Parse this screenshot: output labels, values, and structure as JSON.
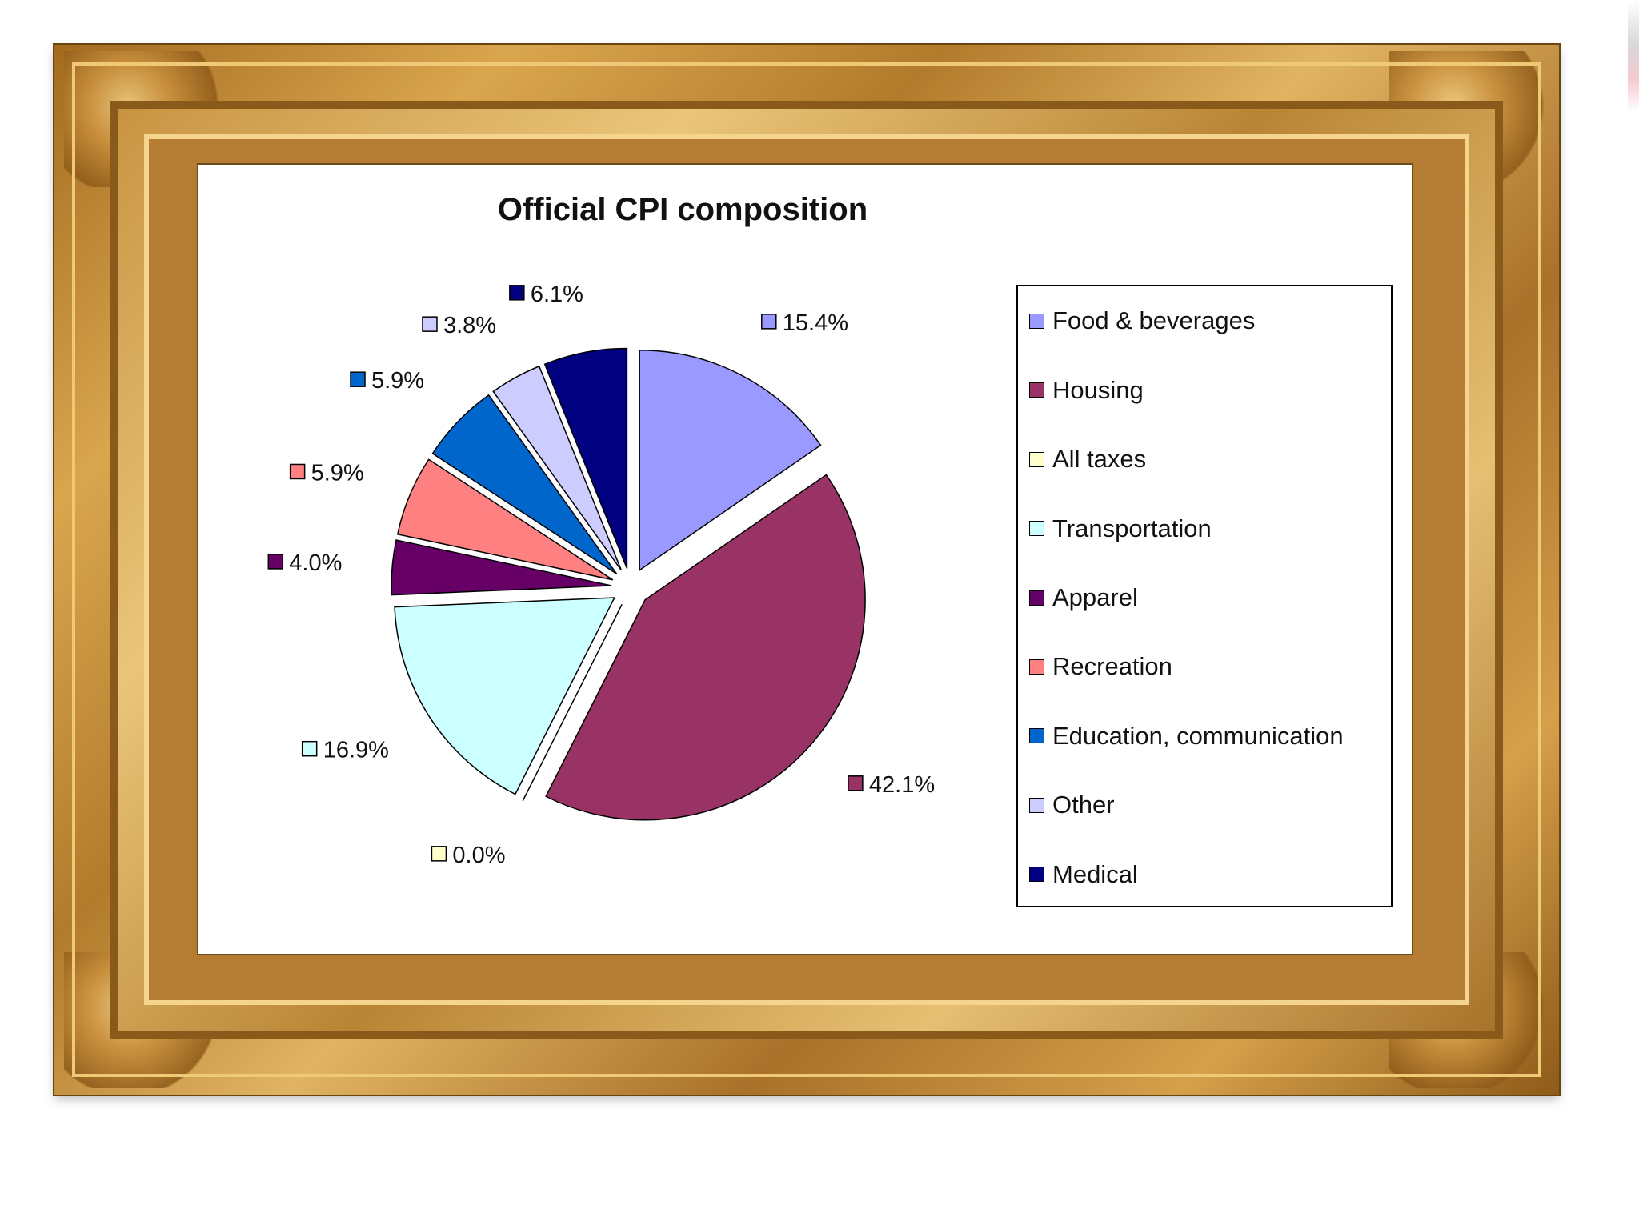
{
  "chart_data": {
    "type": "pie",
    "title": "Official CPI composition",
    "categories": [
      "Food & beverages",
      "Housing",
      "All taxes",
      "Transportation",
      "Apparel",
      "Recreation",
      "Education, communication",
      "Other",
      "Medical"
    ],
    "values": [
      15.4,
      42.1,
      0.0,
      16.9,
      4.0,
      5.9,
      5.9,
      3.8,
      6.1
    ],
    "labels": [
      "15.4%",
      "42.1%",
      "0.0%",
      "16.9%",
      "4.0%",
      "5.9%",
      "5.9%",
      "3.8%",
      "6.1%"
    ],
    "colors": [
      "#9999ff",
      "#993366",
      "#ffffcc",
      "#ccffff",
      "#660066",
      "#ff8080",
      "#0066cc",
      "#ccccff",
      "#000080"
    ],
    "exploded": true,
    "legend": "right",
    "legend_entries": [
      "Food & beverages",
      "Housing",
      "All taxes",
      "Transportation",
      "Apparel",
      "Recreation",
      "Education, communication",
      "Other",
      "Medical"
    ]
  }
}
